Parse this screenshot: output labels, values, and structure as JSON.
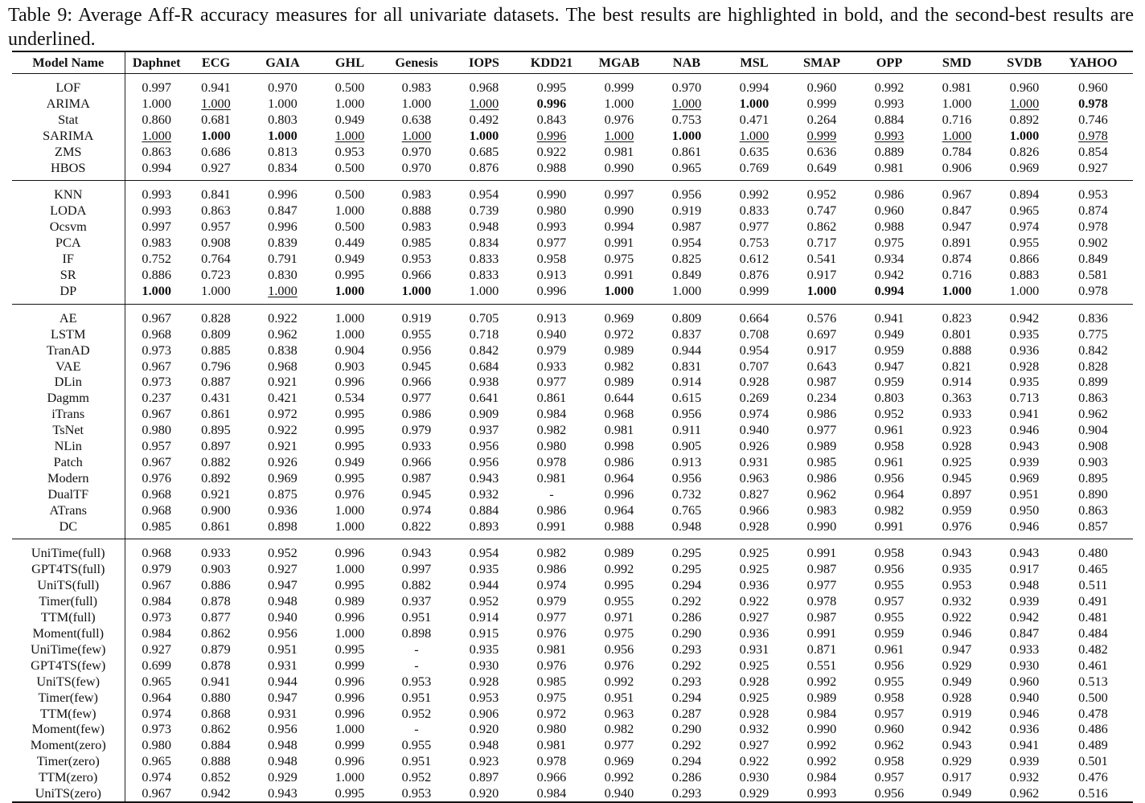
{
  "caption": "Table 9: Average Aff-R accuracy measures for all univariate datasets. The best results are highlighted in bold, and the second-best results are underlined.",
  "columns": [
    "Model Name",
    "Daphnet",
    "ECG",
    "GAIA",
    "GHL",
    "Genesis",
    "IOPS",
    "KDD21",
    "MGAB",
    "NAB",
    "MSL",
    "SMAP",
    "OPP",
    "SMD",
    "SVDB",
    "YAHOO"
  ],
  "groups": [
    [
      {
        "model": "LOF",
        "values": [
          "0.997",
          "0.941",
          "0.970",
          "0.500",
          "0.983",
          "0.968",
          "0.995",
          "0.999",
          "0.970",
          "0.994",
          "0.960",
          "0.992",
          "0.981",
          "0.960",
          "0.960"
        ]
      },
      {
        "model": "ARIMA",
        "values": [
          "1.000",
          "1.000",
          "1.000",
          "1.000",
          "1.000",
          "1.000",
          "0.996",
          "1.000",
          "1.000",
          "1.000",
          "0.999",
          "0.993",
          "1.000",
          "1.000",
          "0.978"
        ],
        "bold": [
          6,
          9,
          14
        ],
        "underline": [
          1,
          5,
          8,
          13
        ]
      },
      {
        "model": "Stat",
        "values": [
          "0.860",
          "0.681",
          "0.803",
          "0.949",
          "0.638",
          "0.492",
          "0.843",
          "0.976",
          "0.753",
          "0.471",
          "0.264",
          "0.884",
          "0.716",
          "0.892",
          "0.746"
        ]
      },
      {
        "model": "SARIMA",
        "values": [
          "1.000",
          "1.000",
          "1.000",
          "1.000",
          "1.000",
          "1.000",
          "0.996",
          "1.000",
          "1.000",
          "1.000",
          "0.999",
          "0.993",
          "1.000",
          "1.000",
          "0.978"
        ],
        "bold": [
          1,
          2,
          5,
          8,
          13
        ],
        "underline": [
          0,
          3,
          4,
          6,
          7,
          9,
          10,
          11,
          12,
          14
        ]
      },
      {
        "model": "ZMS",
        "values": [
          "0.863",
          "0.686",
          "0.813",
          "0.953",
          "0.970",
          "0.685",
          "0.922",
          "0.981",
          "0.861",
          "0.635",
          "0.636",
          "0.889",
          "0.784",
          "0.826",
          "0.854"
        ]
      },
      {
        "model": "HBOS",
        "values": [
          "0.994",
          "0.927",
          "0.834",
          "0.500",
          "0.970",
          "0.876",
          "0.988",
          "0.990",
          "0.965",
          "0.769",
          "0.649",
          "0.981",
          "0.906",
          "0.969",
          "0.927"
        ]
      }
    ],
    [
      {
        "model": "KNN",
        "values": [
          "0.993",
          "0.841",
          "0.996",
          "0.500",
          "0.983",
          "0.954",
          "0.990",
          "0.997",
          "0.956",
          "0.992",
          "0.952",
          "0.986",
          "0.967",
          "0.894",
          "0.953"
        ]
      },
      {
        "model": "LODA",
        "values": [
          "0.993",
          "0.863",
          "0.847",
          "1.000",
          "0.888",
          "0.739",
          "0.980",
          "0.990",
          "0.919",
          "0.833",
          "0.747",
          "0.960",
          "0.847",
          "0.965",
          "0.874"
        ]
      },
      {
        "model": "Ocsvm",
        "values": [
          "0.997",
          "0.957",
          "0.996",
          "0.500",
          "0.983",
          "0.948",
          "0.993",
          "0.994",
          "0.987",
          "0.977",
          "0.862",
          "0.988",
          "0.947",
          "0.974",
          "0.978"
        ]
      },
      {
        "model": "PCA",
        "values": [
          "0.983",
          "0.908",
          "0.839",
          "0.449",
          "0.985",
          "0.834",
          "0.977",
          "0.991",
          "0.954",
          "0.753",
          "0.717",
          "0.975",
          "0.891",
          "0.955",
          "0.902"
        ]
      },
      {
        "model": "IF",
        "values": [
          "0.752",
          "0.764",
          "0.791",
          "0.949",
          "0.953",
          "0.833",
          "0.958",
          "0.975",
          "0.825",
          "0.612",
          "0.541",
          "0.934",
          "0.874",
          "0.866",
          "0.849"
        ]
      },
      {
        "model": "SR",
        "values": [
          "0.886",
          "0.723",
          "0.830",
          "0.995",
          "0.966",
          "0.833",
          "0.913",
          "0.991",
          "0.849",
          "0.876",
          "0.917",
          "0.942",
          "0.716",
          "0.883",
          "0.581"
        ]
      },
      {
        "model": "DP",
        "values": [
          "1.000",
          "1.000",
          "1.000",
          "1.000",
          "1.000",
          "1.000",
          "0.996",
          "1.000",
          "1.000",
          "0.999",
          "1.000",
          "0.994",
          "1.000",
          "1.000",
          "0.978"
        ],
        "bold": [
          0,
          3,
          4,
          7,
          10,
          11,
          12
        ],
        "underline": [
          2
        ]
      }
    ],
    [
      {
        "model": "AE",
        "values": [
          "0.967",
          "0.828",
          "0.922",
          "1.000",
          "0.919",
          "0.705",
          "0.913",
          "0.969",
          "0.809",
          "0.664",
          "0.576",
          "0.941",
          "0.823",
          "0.942",
          "0.836"
        ]
      },
      {
        "model": "LSTM",
        "values": [
          "0.968",
          "0.809",
          "0.962",
          "1.000",
          "0.955",
          "0.718",
          "0.940",
          "0.972",
          "0.837",
          "0.708",
          "0.697",
          "0.949",
          "0.801",
          "0.935",
          "0.775"
        ]
      },
      {
        "model": "TranAD",
        "values": [
          "0.973",
          "0.885",
          "0.838",
          "0.904",
          "0.956",
          "0.842",
          "0.979",
          "0.989",
          "0.944",
          "0.954",
          "0.917",
          "0.959",
          "0.888",
          "0.936",
          "0.842"
        ]
      },
      {
        "model": "VAE",
        "values": [
          "0.967",
          "0.796",
          "0.968",
          "0.903",
          "0.945",
          "0.684",
          "0.933",
          "0.982",
          "0.831",
          "0.707",
          "0.643",
          "0.947",
          "0.821",
          "0.928",
          "0.828"
        ]
      },
      {
        "model": "DLin",
        "values": [
          "0.973",
          "0.887",
          "0.921",
          "0.996",
          "0.966",
          "0.938",
          "0.977",
          "0.989",
          "0.914",
          "0.928",
          "0.987",
          "0.959",
          "0.914",
          "0.935",
          "0.899"
        ]
      },
      {
        "model": "Dagmm",
        "values": [
          "0.237",
          "0.431",
          "0.421",
          "0.534",
          "0.977",
          "0.641",
          "0.861",
          "0.644",
          "0.615",
          "0.269",
          "0.234",
          "0.803",
          "0.363",
          "0.713",
          "0.863"
        ]
      },
      {
        "model": "iTrans",
        "values": [
          "0.967",
          "0.861",
          "0.972",
          "0.995",
          "0.986",
          "0.909",
          "0.984",
          "0.968",
          "0.956",
          "0.974",
          "0.986",
          "0.952",
          "0.933",
          "0.941",
          "0.962"
        ]
      },
      {
        "model": "TsNet",
        "values": [
          "0.980",
          "0.895",
          "0.922",
          "0.995",
          "0.979",
          "0.937",
          "0.982",
          "0.981",
          "0.911",
          "0.940",
          "0.977",
          "0.961",
          "0.923",
          "0.946",
          "0.904"
        ]
      },
      {
        "model": "NLin",
        "values": [
          "0.957",
          "0.897",
          "0.921",
          "0.995",
          "0.933",
          "0.956",
          "0.980",
          "0.998",
          "0.905",
          "0.926",
          "0.989",
          "0.958",
          "0.928",
          "0.943",
          "0.908"
        ]
      },
      {
        "model": "Patch",
        "values": [
          "0.967",
          "0.882",
          "0.926",
          "0.949",
          "0.966",
          "0.956",
          "0.978",
          "0.986",
          "0.913",
          "0.931",
          "0.985",
          "0.961",
          "0.925",
          "0.939",
          "0.903"
        ]
      },
      {
        "model": "Modern",
        "values": [
          "0.976",
          "0.892",
          "0.969",
          "0.995",
          "0.987",
          "0.943",
          "0.981",
          "0.964",
          "0.956",
          "0.963",
          "0.986",
          "0.956",
          "0.945",
          "0.969",
          "0.895"
        ]
      },
      {
        "model": "DualTF",
        "values": [
          "0.968",
          "0.921",
          "0.875",
          "0.976",
          "0.945",
          "0.932",
          "-",
          "0.996",
          "0.732",
          "0.827",
          "0.962",
          "0.964",
          "0.897",
          "0.951",
          "0.890"
        ]
      },
      {
        "model": "ATrans",
        "values": [
          "0.968",
          "0.900",
          "0.936",
          "1.000",
          "0.974",
          "0.884",
          "0.986",
          "0.964",
          "0.765",
          "0.966",
          "0.983",
          "0.982",
          "0.959",
          "0.950",
          "0.863"
        ]
      },
      {
        "model": "DC",
        "values": [
          "0.985",
          "0.861",
          "0.898",
          "1.000",
          "0.822",
          "0.893",
          "0.991",
          "0.988",
          "0.948",
          "0.928",
          "0.990",
          "0.991",
          "0.976",
          "0.946",
          "0.857"
        ]
      }
    ],
    [
      {
        "model": "UniTime(full)",
        "values": [
          "0.968",
          "0.933",
          "0.952",
          "0.996",
          "0.943",
          "0.954",
          "0.982",
          "0.989",
          "0.295",
          "0.925",
          "0.991",
          "0.958",
          "0.943",
          "0.943",
          "0.480"
        ]
      },
      {
        "model": "GPT4TS(full)",
        "values": [
          "0.979",
          "0.903",
          "0.927",
          "1.000",
          "0.997",
          "0.935",
          "0.986",
          "0.992",
          "0.295",
          "0.925",
          "0.987",
          "0.956",
          "0.935",
          "0.917",
          "0.465"
        ]
      },
      {
        "model": "UniTS(full)",
        "values": [
          "0.967",
          "0.886",
          "0.947",
          "0.995",
          "0.882",
          "0.944",
          "0.974",
          "0.995",
          "0.294",
          "0.936",
          "0.977",
          "0.955",
          "0.953",
          "0.948",
          "0.511"
        ]
      },
      {
        "model": "Timer(full)",
        "values": [
          "0.984",
          "0.878",
          "0.948",
          "0.989",
          "0.937",
          "0.952",
          "0.979",
          "0.955",
          "0.292",
          "0.922",
          "0.978",
          "0.957",
          "0.932",
          "0.939",
          "0.491"
        ]
      },
      {
        "model": "TTM(full)",
        "values": [
          "0.973",
          "0.877",
          "0.940",
          "0.996",
          "0.951",
          "0.914",
          "0.977",
          "0.971",
          "0.286",
          "0.927",
          "0.987",
          "0.955",
          "0.922",
          "0.942",
          "0.481"
        ]
      },
      {
        "model": "Moment(full)",
        "values": [
          "0.984",
          "0.862",
          "0.956",
          "1.000",
          "0.898",
          "0.915",
          "0.976",
          "0.975",
          "0.290",
          "0.936",
          "0.991",
          "0.959",
          "0.946",
          "0.847",
          "0.484"
        ]
      },
      {
        "model": "UniTime(few)",
        "values": [
          "0.927",
          "0.879",
          "0.951",
          "0.995",
          "-",
          "0.935",
          "0.981",
          "0.956",
          "0.293",
          "0.931",
          "0.871",
          "0.961",
          "0.947",
          "0.933",
          "0.482"
        ]
      },
      {
        "model": "GPT4TS(few)",
        "values": [
          "0.699",
          "0.878",
          "0.931",
          "0.999",
          "-",
          "0.930",
          "0.976",
          "0.976",
          "0.292",
          "0.925",
          "0.551",
          "0.956",
          "0.929",
          "0.930",
          "0.461"
        ]
      },
      {
        "model": "UniTS(few)",
        "values": [
          "0.965",
          "0.941",
          "0.944",
          "0.996",
          "0.953",
          "0.928",
          "0.985",
          "0.992",
          "0.293",
          "0.928",
          "0.992",
          "0.955",
          "0.949",
          "0.960",
          "0.513"
        ]
      },
      {
        "model": "Timer(few)",
        "values": [
          "0.964",
          "0.880",
          "0.947",
          "0.996",
          "0.951",
          "0.953",
          "0.975",
          "0.951",
          "0.294",
          "0.925",
          "0.989",
          "0.958",
          "0.928",
          "0.940",
          "0.500"
        ]
      },
      {
        "model": "TTM(few)",
        "values": [
          "0.974",
          "0.868",
          "0.931",
          "0.996",
          "0.952",
          "0.906",
          "0.972",
          "0.963",
          "0.287",
          "0.928",
          "0.984",
          "0.957",
          "0.919",
          "0.946",
          "0.478"
        ]
      },
      {
        "model": "Moment(few)",
        "values": [
          "0.973",
          "0.862",
          "0.956",
          "1.000",
          "-",
          "0.920",
          "0.980",
          "0.982",
          "0.290",
          "0.932",
          "0.990",
          "0.960",
          "0.942",
          "0.936",
          "0.486"
        ]
      },
      {
        "model": "Moment(zero)",
        "values": [
          "0.980",
          "0.884",
          "0.948",
          "0.999",
          "0.955",
          "0.948",
          "0.981",
          "0.977",
          "0.292",
          "0.927",
          "0.992",
          "0.962",
          "0.943",
          "0.941",
          "0.489"
        ]
      },
      {
        "model": "Timer(zero)",
        "values": [
          "0.965",
          "0.888",
          "0.948",
          "0.996",
          "0.951",
          "0.923",
          "0.978",
          "0.969",
          "0.294",
          "0.922",
          "0.992",
          "0.958",
          "0.929",
          "0.939",
          "0.501"
        ]
      },
      {
        "model": "TTM(zero)",
        "values": [
          "0.974",
          "0.852",
          "0.929",
          "1.000",
          "0.952",
          "0.897",
          "0.966",
          "0.992",
          "0.286",
          "0.930",
          "0.984",
          "0.957",
          "0.917",
          "0.932",
          "0.476"
        ]
      },
      {
        "model": "UniTS(zero)",
        "values": [
          "0.967",
          "0.942",
          "0.943",
          "0.995",
          "0.953",
          "0.920",
          "0.984",
          "0.940",
          "0.293",
          "0.929",
          "0.993",
          "0.956",
          "0.949",
          "0.962",
          "0.516"
        ]
      }
    ]
  ]
}
